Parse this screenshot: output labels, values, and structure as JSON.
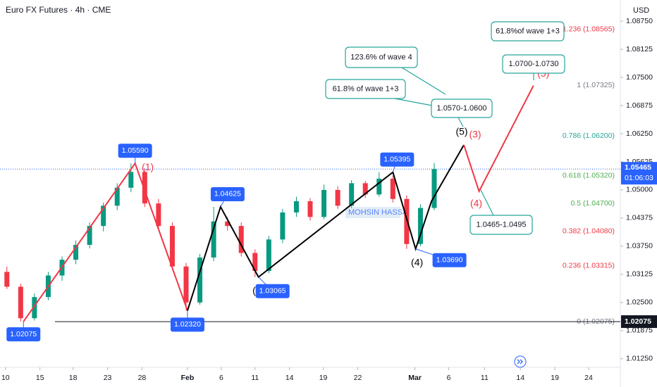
{
  "chart_data": {
    "type": "candlestick",
    "title": "Euro FX Futures · 4h · CME",
    "currency": "USD",
    "watermark": "MOHSIN HASSA",
    "up_color": "#089981",
    "down_color": "#f23645",
    "xlim": [
      0,
      90
    ],
    "ylim": [
      1.0106,
      1.0922
    ],
    "xticks": [
      {
        "value": 0.8,
        "label": "10"
      },
      {
        "value": 5.8,
        "label": "15"
      },
      {
        "value": 10.6,
        "label": "18"
      },
      {
        "value": 15.6,
        "label": "23"
      },
      {
        "value": 20.6,
        "label": "28"
      },
      {
        "value": 27.2,
        "label": "Feb"
      },
      {
        "value": 32.1,
        "label": "6"
      },
      {
        "value": 37,
        "label": "11"
      },
      {
        "value": 42,
        "label": "14"
      },
      {
        "value": 46.9,
        "label": "19"
      },
      {
        "value": 51.9,
        "label": "22"
      },
      {
        "value": 60.2,
        "label": "Mar"
      },
      {
        "value": 65.1,
        "label": "6"
      },
      {
        "value": 70.3,
        "label": "11"
      },
      {
        "value": 75.5,
        "label": "14"
      },
      {
        "value": 80.5,
        "label": "19"
      },
      {
        "value": 85.4,
        "label": "24"
      }
    ],
    "yticks": [
      {
        "value": 1.0875,
        "label": "1.08750"
      },
      1.08125,
      {
        "value": 1.075,
        "label": "1.07500"
      },
      1.06875,
      {
        "value": 1.0625,
        "label": "1.06250"
      },
      1.05625,
      {
        "value": 1.05,
        "label": "1.05000"
      },
      1.04375,
      {
        "value": 1.0375,
        "label": "1.03750"
      },
      1.03125,
      {
        "value": 1.025,
        "label": "1.02500"
      },
      1.01875,
      {
        "value": 1.0125,
        "label": "1.01250"
      }
    ],
    "x": [
      1,
      3,
      5,
      7,
      9,
      11,
      13,
      15,
      17,
      19,
      21,
      23,
      25,
      27,
      29,
      31,
      33,
      35,
      37,
      39,
      41,
      43,
      45,
      47,
      49,
      51,
      53,
      55,
      57,
      59,
      61,
      63
    ],
    "open": [
      1.0318,
      1.0285,
      1.0215,
      1.0262,
      1.031,
      1.0345,
      1.0378,
      1.042,
      1.0465,
      1.0505,
      1.054,
      1.047,
      1.042,
      1.033,
      1.025,
      1.035,
      1.043,
      1.042,
      1.036,
      1.032,
      1.039,
      1.045,
      1.0475,
      1.044,
      1.05,
      1.0465,
      1.0515,
      1.049,
      1.0525,
      1.048,
      1.038,
      1.046
    ],
    "high": [
      1.033,
      1.0292,
      1.027,
      1.0318,
      1.0352,
      1.0388,
      1.0428,
      1.0472,
      1.0515,
      1.0559,
      1.0548,
      1.048,
      1.0428,
      1.0338,
      1.0358,
      1.04625,
      1.044,
      1.0428,
      1.0368,
      1.0398,
      1.0458,
      1.0485,
      1.0482,
      1.0512,
      1.0508,
      1.0522,
      1.052,
      1.05395,
      1.0532,
      1.0488,
      1.0468,
      1.056
    ],
    "low": [
      1.028,
      1.02075,
      1.021,
      1.0255,
      1.0298,
      1.0335,
      1.037,
      1.0408,
      1.0455,
      1.0495,
      1.0462,
      1.0412,
      1.0322,
      1.0232,
      1.0245,
      1.0342,
      1.041,
      1.0352,
      1.03065,
      1.0315,
      1.0382,
      1.044,
      1.0432,
      1.0435,
      1.0458,
      1.046,
      1.0482,
      1.0485,
      1.0472,
      1.0369,
      1.0375,
      1.0455
    ],
    "close": [
      1.0285,
      1.0215,
      1.0262,
      1.031,
      1.0345,
      1.0378,
      1.042,
      1.0465,
      1.0505,
      1.054,
      1.047,
      1.042,
      1.033,
      1.025,
      1.035,
      1.043,
      1.042,
      1.036,
      1.032,
      1.039,
      1.045,
      1.0475,
      1.044,
      1.05,
      1.0465,
      1.0515,
      1.049,
      1.0525,
      1.048,
      1.038,
      1.046,
      1.05465
    ],
    "last_price": {
      "value": 1.05465,
      "label": "1.05465"
    },
    "countdown": "01:06:03",
    "base_line": {
      "value": 1.02075,
      "label": "1.02075"
    },
    "fib_levels": [
      {
        "value": 1.08565,
        "label": "1.236 (1.08565)",
        "color": "#f23645"
      },
      {
        "value": 1.07325,
        "label": "1 (1.07325)",
        "color": "#787b86"
      },
      {
        "value": 1.062,
        "label": "0.786 (1.06200)",
        "color": "#26a69a"
      },
      {
        "value": 1.0532,
        "label": "0.618 (1.05320)",
        "color": "#4caf50"
      },
      {
        "value": 1.047,
        "label": "0.5 (1.04700)",
        "color": "#4caf50"
      },
      {
        "value": 1.0408,
        "label": "0.382 (1.04080)",
        "color": "#f23645"
      },
      {
        "value": 1.03315,
        "label": "0.236 (1.03315)",
        "color": "#f23645"
      },
      {
        "value": 1.02075,
        "label": "0 (1.02075)",
        "color": "#787b86"
      }
    ],
    "price_tags": [
      {
        "value": 1.02075,
        "label": "1.02075",
        "x": 3.4
      },
      {
        "value": 1.0559,
        "label": "1.05590",
        "x": 19.6
      },
      {
        "value": 1.0232,
        "label": "1.02320",
        "x": 27.2
      },
      {
        "value": 1.04625,
        "label": "1.04625",
        "x": 32
      },
      {
        "value": 1.03065,
        "label": "1.03065",
        "x": 37.5
      },
      {
        "value": 1.05395,
        "label": "1.05395",
        "x": 57
      },
      {
        "value": 1.0369,
        "label": "1.03690",
        "x": 60.3
      }
    ],
    "wave_lines": [
      {
        "color": "#f23645",
        "x": [
          3.4,
          19.6,
          27.2
        ],
        "y": [
          1.02075,
          1.0559,
          1.0232
        ]
      },
      {
        "color": "#000000",
        "x": [
          27.2,
          32,
          37.5,
          57,
          60.3,
          62.6,
          67.3
        ],
        "y": [
          1.0232,
          1.04625,
          1.03065,
          1.05395,
          1.0369,
          1.0475,
          1.06
        ]
      },
      {
        "color": "#f23645",
        "x": [
          67.3,
          69.5,
          77.4
        ],
        "y": [
          1.06,
          1.0497,
          1.0732
        ]
      }
    ],
    "wave_labels": [
      {
        "label": "(1)",
        "color": "#f23645",
        "x": 19.6,
        "y": 1.0559
      },
      {
        "label": "(2)",
        "color": "#f23645",
        "x": 27.2,
        "y": 1.0232
      },
      {
        "label": "(1)",
        "color": "#000000",
        "x": 32,
        "y": 1.04625
      },
      {
        "label": "(2)",
        "color": "#000000",
        "x": 37.5,
        "y": 1.03065
      },
      {
        "label": "(3)",
        "color": "#000000",
        "x": 57,
        "y": 1.05395
      },
      {
        "label": "(4)",
        "color": "#000000",
        "x": 60.3,
        "y": 1.0369
      },
      {
        "label": "(5)",
        "color": "#000000",
        "x": 67.3,
        "y": 1.06
      },
      {
        "label": "(3)",
        "color": "#f23645",
        "x": 67.3,
        "y": 1.06
      },
      {
        "label": "(4)",
        "color": "#f23645",
        "x": 69.5,
        "y": 1.0497
      },
      {
        "label": "(5)",
        "color": "#f23645",
        "x": 77.4,
        "y": 1.0732
      }
    ],
    "callouts": [
      "61.8%of wave 1+3",
      "1.0700-1.0730",
      "123.6% of wave 4",
      "61.8% of wave 1+3",
      "1.0570-1.0600",
      "1.0465-1.0495"
    ]
  }
}
